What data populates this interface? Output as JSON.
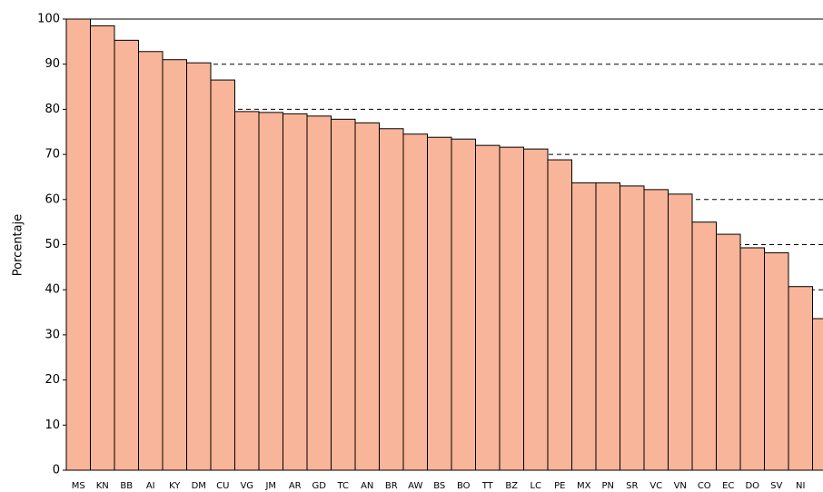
{
  "chart_data": {
    "type": "bar",
    "y_label": "Porcentaje",
    "categories": [
      "MS",
      "KN",
      "BB",
      "AI",
      "KY",
      "DM",
      "CU",
      "VG",
      "JM",
      "AR",
      "GD",
      "TC",
      "AN",
      "BR",
      "AW",
      "BS",
      "BO",
      "TT",
      "BZ",
      "LC",
      "PE",
      "MX",
      "PN",
      "SR",
      "VC",
      "VN",
      "CO",
      "EC",
      "DO",
      "SV",
      "NI",
      null
    ],
    "values": [
      100,
      98.5,
      95.3,
      92.8,
      91,
      90.3,
      86.5,
      79.5,
      79.3,
      79,
      78.5,
      77.8,
      77,
      75.7,
      74.5,
      73.8,
      73.4,
      72,
      71.6,
      71.2,
      68.8,
      63.7,
      63.7,
      63,
      62.2,
      61.2,
      55,
      52.3,
      49.3,
      48.2,
      40.7,
      33.6
    ],
    "color": "#f8b599",
    "ylim": [
      0,
      100
    ],
    "yticks": [
      0,
      10,
      20,
      30,
      40,
      50,
      60,
      70,
      80,
      90,
      100
    ],
    "grid": true
  }
}
